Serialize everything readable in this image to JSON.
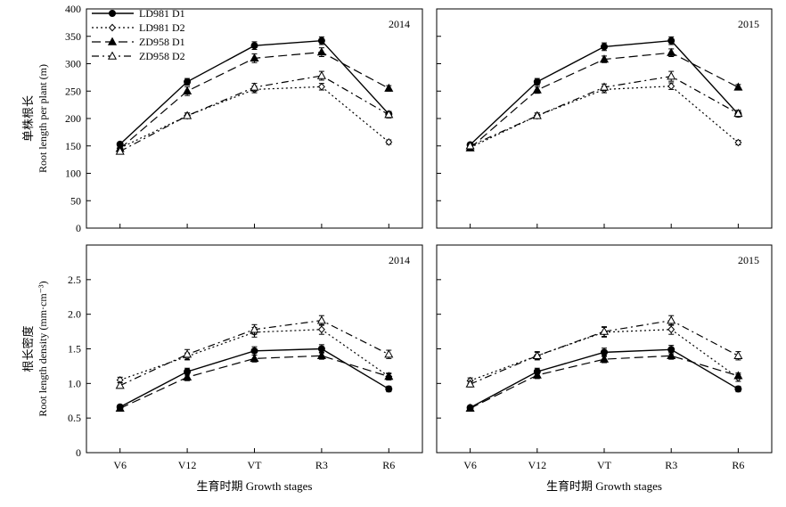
{
  "chart_data": {
    "type": "line",
    "categories": [
      "V6",
      "V12",
      "VT",
      "R3",
      "R6"
    ],
    "xlabel": "生育时期 Growth stages",
    "legend": {
      "placement": "top-left of first panel",
      "entries": [
        "LD981 D1",
        "LD981 D2",
        "ZD958 D1",
        "ZD958 D2"
      ]
    },
    "rows": [
      {
        "ylabel_cn": "单株根长",
        "ylabel_en": "Root length per plant (m)",
        "ylim": [
          0,
          400
        ],
        "yticks": [
          "0",
          "50",
          "100",
          "150",
          "200",
          "250",
          "300",
          "350",
          "400"
        ]
      },
      {
        "ylabel_cn": "根长密度",
        "ylabel_en": "Root length density (mm·cm⁻³)",
        "ylim": [
          0,
          3.0
        ],
        "yticks": [
          "0",
          "0.5",
          "1.0",
          "1.5",
          "2.0",
          "2.5"
        ]
      }
    ],
    "panels": [
      {
        "year": "2014",
        "series": [
          {
            "name": "LD981 D1",
            "values": [
              153,
              267,
              333,
              342,
              208
            ],
            "errors": [
              4,
              6,
              7,
              7,
              5
            ]
          },
          {
            "name": "LD981 D2",
            "values": [
              146,
              205,
              253,
              258,
              157
            ],
            "errors": [
              4,
              5,
              6,
              6,
              4
            ]
          },
          {
            "name": "ZD958 D1",
            "values": [
              145,
              250,
              310,
              321,
              255
            ],
            "errors": [
              4,
              8,
              8,
              8,
              5
            ]
          },
          {
            "name": "ZD958 D2",
            "values": [
              140,
              205,
              257,
              278,
              207
            ],
            "errors": [
              5,
              5,
              7,
              8,
              6
            ]
          }
        ]
      },
      {
        "year": "2015",
        "series": [
          {
            "name": "LD981 D1",
            "values": [
              152,
              267,
              331,
              342,
              208
            ],
            "errors": [
              4,
              6,
              7,
              7,
              5
            ]
          },
          {
            "name": "LD981 D2",
            "values": [
              147,
              205,
              253,
              259,
              156
            ],
            "errors": [
              4,
              5,
              6,
              6,
              4
            ]
          },
          {
            "name": "ZD958 D1",
            "values": [
              146,
              252,
              308,
              320,
              257
            ],
            "errors": [
              4,
              6,
              6,
              7,
              5
            ]
          },
          {
            "name": "ZD958 D2",
            "values": [
              150,
              205,
              257,
              277,
              209
            ],
            "errors": [
              5,
              5,
              6,
              9,
              6
            ]
          }
        ]
      },
      {
        "year": "2014",
        "series": [
          {
            "name": "LD981 D1",
            "values": [
              0.66,
              1.17,
              1.47,
              1.5,
              0.92
            ],
            "errors": [
              0.03,
              0.05,
              0.06,
              0.06,
              0.04
            ]
          },
          {
            "name": "LD981 D2",
            "values": [
              1.05,
              1.39,
              1.74,
              1.78,
              1.1
            ],
            "errors": [
              0.04,
              0.05,
              0.07,
              0.07,
              0.05
            ]
          },
          {
            "name": "ZD958 D1",
            "values": [
              0.64,
              1.09,
              1.36,
              1.4,
              1.1
            ],
            "errors": [
              0.03,
              0.05,
              0.05,
              0.05,
              0.04
            ]
          },
          {
            "name": "ZD958 D2",
            "values": [
              0.97,
              1.42,
              1.78,
              1.91,
              1.42
            ],
            "errors": [
              0.04,
              0.07,
              0.07,
              0.07,
              0.06
            ]
          }
        ]
      },
      {
        "year": "2015",
        "series": [
          {
            "name": "LD981 D1",
            "values": [
              0.65,
              1.17,
              1.45,
              1.49,
              0.92
            ],
            "errors": [
              0.03,
              0.05,
              0.06,
              0.06,
              0.04
            ]
          },
          {
            "name": "LD981 D2",
            "values": [
              1.04,
              1.4,
              1.74,
              1.78,
              1.08
            ],
            "errors": [
              0.04,
              0.05,
              0.07,
              0.07,
              0.05
            ]
          },
          {
            "name": "ZD958 D1",
            "values": [
              0.64,
              1.12,
              1.35,
              1.4,
              1.11
            ],
            "errors": [
              0.03,
              0.05,
              0.05,
              0.05,
              0.04
            ]
          },
          {
            "name": "ZD958 D2",
            "values": [
              0.99,
              1.4,
              1.75,
              1.91,
              1.4
            ],
            "errors": [
              0.04,
              0.06,
              0.07,
              0.07,
              0.06
            ]
          }
        ]
      }
    ]
  }
}
